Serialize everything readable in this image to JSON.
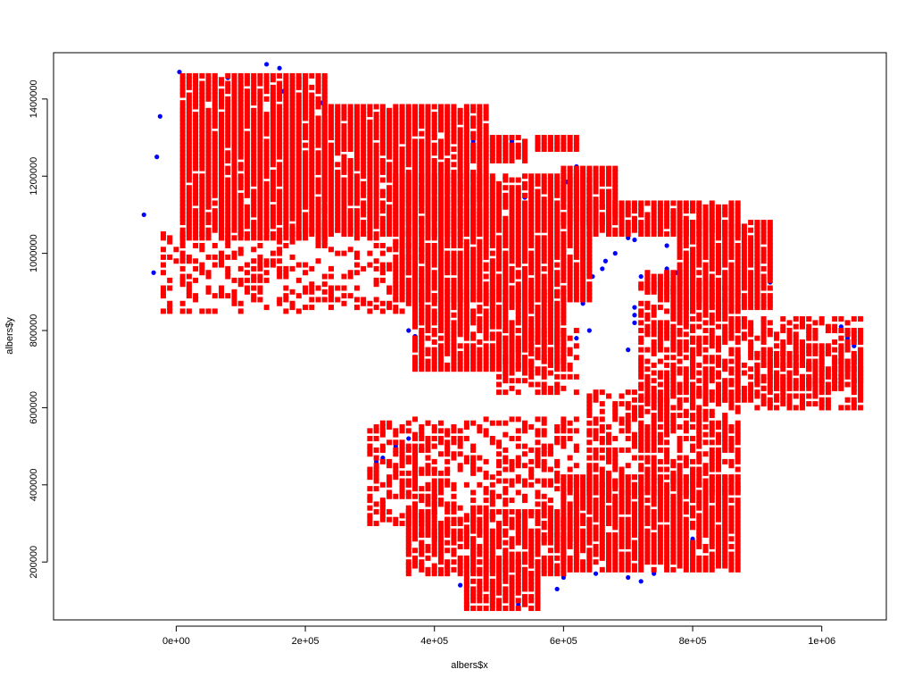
{
  "chart_data": {
    "type": "scatter",
    "title": "",
    "xlabel": "albers$x",
    "ylabel": "albers$y",
    "xlim": [
      -190000,
      1100000
    ],
    "ylim": [
      50000,
      1520000
    ],
    "x_ticks": [
      0,
      200000,
      400000,
      600000,
      800000,
      1000000
    ],
    "x_tick_labels": [
      "0e+00",
      "2e+05",
      "4e+05",
      "6e+05",
      "8e+05",
      "1e+06"
    ],
    "y_ticks": [
      200000,
      400000,
      600000,
      800000,
      1000000,
      1200000,
      1400000
    ],
    "y_tick_labels": [
      "200000",
      "400000",
      "600000",
      "800000",
      "1000000",
      "1200000",
      "1400000"
    ],
    "grid": false,
    "colors": {
      "points_blue": "#0000ff",
      "points_red": "#ff0000",
      "frame": "#000000"
    },
    "series": [
      {
        "color": "#0000ff",
        "marker": "circle",
        "points": [
          [
            -50000,
            1100000
          ],
          [
            -35000,
            950000
          ],
          [
            -30000,
            1250000
          ],
          [
            -25000,
            1355000
          ],
          [
            5000,
            1470000
          ],
          [
            20000,
            1460000
          ],
          [
            40000,
            1460000
          ],
          [
            60000,
            1458000
          ],
          [
            80000,
            1455000
          ],
          [
            100000,
            1450000
          ],
          [
            120000,
            1450000
          ],
          [
            140000,
            1490000
          ],
          [
            160000,
            1480000
          ],
          [
            165000,
            1420000
          ],
          [
            180000,
            1410000
          ],
          [
            200000,
            1400000
          ],
          [
            210000,
            1398000
          ],
          [
            225000,
            1390000
          ],
          [
            240000,
            1380000
          ],
          [
            250000,
            1375000
          ],
          [
            270000,
            1380000
          ],
          [
            280000,
            1372000
          ],
          [
            300000,
            1365000
          ],
          [
            310000,
            1360000
          ],
          [
            320000,
            1350000
          ],
          [
            340000,
            1345000
          ],
          [
            360000,
            1340000
          ],
          [
            380000,
            1330000
          ],
          [
            400000,
            1315000
          ],
          [
            420000,
            1300000
          ],
          [
            440000,
            1295000
          ],
          [
            460000,
            1290000
          ],
          [
            470000,
            1285000
          ],
          [
            500000,
            1290000
          ],
          [
            510000,
            1280000
          ],
          [
            520000,
            1290000
          ],
          [
            540000,
            1280000
          ],
          [
            580000,
            1300000
          ],
          [
            590000,
            1300000
          ],
          [
            600000,
            1300000
          ],
          [
            610000,
            1220000
          ],
          [
            620000,
            1225000
          ],
          [
            640000,
            1220000
          ],
          [
            660000,
            1220000
          ],
          [
            600000,
            1200000
          ],
          [
            605000,
            1185000
          ],
          [
            660000,
            1130000
          ],
          [
            670000,
            1100000
          ],
          [
            690000,
            1090000
          ],
          [
            700000,
            1080000
          ],
          [
            710000,
            1110000
          ],
          [
            730000,
            1090000
          ],
          [
            750000,
            1100000
          ],
          [
            770000,
            1060000
          ],
          [
            790000,
            1050000
          ],
          [
            810000,
            1110000
          ],
          [
            830000,
            1100000
          ],
          [
            850000,
            1100000
          ],
          [
            860000,
            1090000
          ],
          [
            880000,
            1060000
          ],
          [
            900000,
            1050000
          ],
          [
            910000,
            940000
          ],
          [
            920000,
            925000
          ],
          [
            1000000,
            820000
          ],
          [
            1030000,
            810000
          ],
          [
            1040000,
            780000
          ],
          [
            1050000,
            760000
          ],
          [
            1000000,
            760000
          ],
          [
            1020000,
            720000
          ],
          [
            1040000,
            690000
          ],
          [
            400000,
            1155000
          ],
          [
            420000,
            1160000
          ],
          [
            440000,
            1170000
          ],
          [
            460000,
            1175000
          ],
          [
            470000,
            1180000
          ],
          [
            480000,
            1185000
          ],
          [
            540000,
            1145000
          ],
          [
            560000,
            1150000
          ],
          [
            690000,
            1050000
          ],
          [
            700000,
            1040000
          ],
          [
            710000,
            1035000
          ],
          [
            680000,
            1000000
          ],
          [
            665000,
            980000
          ],
          [
            660000,
            960000
          ],
          [
            645000,
            940000
          ],
          [
            640000,
            915000
          ],
          [
            630000,
            870000
          ],
          [
            640000,
            800000
          ],
          [
            620000,
            780000
          ],
          [
            760000,
            960000
          ],
          [
            775000,
            950000
          ],
          [
            790000,
            930000
          ],
          [
            800000,
            920000
          ],
          [
            840000,
            1020000
          ],
          [
            860000,
            1000000
          ],
          [
            760000,
            1020000
          ],
          [
            780000,
            1000000
          ],
          [
            730000,
            950000
          ],
          [
            720000,
            940000
          ],
          [
            710000,
            860000
          ],
          [
            710000,
            840000
          ],
          [
            710000,
            820000
          ],
          [
            720000,
            800000
          ],
          [
            700000,
            750000
          ],
          [
            720000,
            700000
          ],
          [
            360000,
            800000
          ],
          [
            370000,
            785000
          ],
          [
            380000,
            770000
          ],
          [
            400000,
            730000
          ],
          [
            410000,
            710000
          ],
          [
            300000,
            430000
          ],
          [
            310000,
            460000
          ],
          [
            320000,
            470000
          ],
          [
            340000,
            500000
          ],
          [
            360000,
            520000
          ],
          [
            380000,
            540000
          ],
          [
            440000,
            140000
          ],
          [
            460000,
            120000
          ],
          [
            470000,
            100000
          ],
          [
            490000,
            90000
          ],
          [
            510000,
            80000
          ],
          [
            530000,
            90000
          ],
          [
            560000,
            100000
          ],
          [
            590000,
            130000
          ],
          [
            600000,
            160000
          ],
          [
            650000,
            170000
          ],
          [
            700000,
            160000
          ],
          [
            720000,
            150000
          ],
          [
            740000,
            170000
          ],
          [
            760000,
            200000
          ],
          [
            780000,
            230000
          ],
          [
            800000,
            260000
          ],
          [
            860000,
            300000
          ],
          [
            870000,
            330000
          ],
          [
            870000,
            390000
          ],
          [
            870000,
            420000
          ],
          [
            860000,
            450000
          ],
          [
            640000,
            630000
          ],
          [
            560000,
            640000
          ]
        ]
      },
      {
        "color": "#ff0000",
        "marker": "square",
        "regions": [
          {
            "x": [
              10000,
              230000
            ],
            "y": [
              1040000,
              1460000
            ],
            "density": 0.92
          },
          {
            "x": [
              230000,
              480000
            ],
            "y": [
              1050000,
              1380000
            ],
            "density": 0.92
          },
          {
            "x": [
              480000,
              540000
            ],
            "y": [
              1240000,
              1300000
            ],
            "density": 0.9
          },
          {
            "x": [
              -20000,
              380000
            ],
            "y": [
              850000,
              1060000
            ],
            "density": 0.35
          },
          {
            "x": [
              340000,
              640000
            ],
            "y": [
              880000,
              1200000
            ],
            "density": 0.92
          },
          {
            "x": [
              370000,
              600000
            ],
            "y": [
              700000,
              900000
            ],
            "density": 0.85
          },
          {
            "x": [
              500000,
              620000
            ],
            "y": [
              640000,
              800000
            ],
            "density": 0.45
          },
          {
            "x": [
              600000,
              680000
            ],
            "y": [
              1080000,
              1220000
            ],
            "density": 0.9
          },
          {
            "x": [
              640000,
              870000
            ],
            "y": [
              1050000,
              1130000
            ],
            "density": 0.9
          },
          {
            "x": [
              780000,
              920000
            ],
            "y": [
              860000,
              1080000
            ],
            "density": 0.9
          },
          {
            "x": [
              730000,
              780000
            ],
            "y": [
              900000,
              950000
            ],
            "density": 0.9
          },
          {
            "x": [
              720000,
              870000
            ],
            "y": [
              620000,
              920000
            ],
            "density": 0.65
          },
          {
            "x": [
              870000,
              1060000
            ],
            "y": [
              600000,
              830000
            ],
            "density": 0.55
          },
          {
            "x": [
              640000,
              870000
            ],
            "y": [
              380000,
              640000
            ],
            "density": 0.55
          },
          {
            "x": [
              600000,
              870000
            ],
            "y": [
              180000,
              420000
            ],
            "density": 0.88
          },
          {
            "x": [
              360000,
              620000
            ],
            "y": [
              260000,
              570000
            ],
            "density": 0.4
          },
          {
            "x": [
              300000,
              400000
            ],
            "y": [
              300000,
              560000
            ],
            "density": 0.45
          },
          {
            "x": [
              360000,
              600000
            ],
            "y": [
              170000,
              330000
            ],
            "density": 0.7
          },
          {
            "x": [
              450000,
              560000
            ],
            "y": [
              80000,
              200000
            ],
            "density": 0.85
          },
          {
            "x": [
              560000,
              620000
            ],
            "y": [
              1270000,
              1300000
            ],
            "density": 0.9
          },
          {
            "x": [
              900000,
              1060000
            ],
            "y": [
              650000,
              740000
            ],
            "density": 0.7
          }
        ]
      }
    ]
  }
}
